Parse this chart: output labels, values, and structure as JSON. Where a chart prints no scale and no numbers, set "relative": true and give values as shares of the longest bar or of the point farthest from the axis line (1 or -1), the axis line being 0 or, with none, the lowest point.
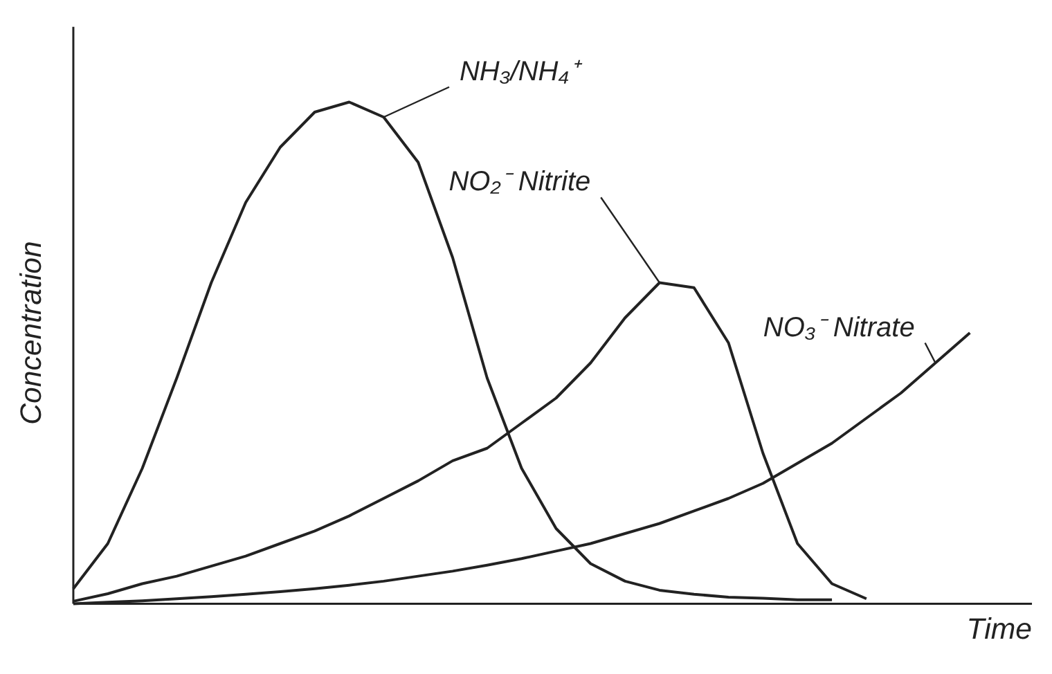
{
  "chart_data": {
    "type": "line",
    "relative": true,
    "xlabel": "Time",
    "ylabel": "Concentration",
    "legend": false,
    "grid": false,
    "marker": "none",
    "line_style": "solid",
    "categories": [
      null,
      null,
      null,
      null,
      null,
      null,
      null,
      null,
      null,
      null,
      null,
      null,
      null,
      null,
      null,
      null,
      null,
      null,
      null,
      null,
      null,
      null,
      null,
      null,
      null,
      null,
      null
    ],
    "series": [
      {
        "name": "NH₃/NH₄⁺",
        "color": "#222222",
        "values": [
          0.03,
          0.12,
          0.27,
          0.45,
          0.64,
          0.8,
          0.91,
          0.98,
          1.0,
          0.97,
          0.88,
          0.69,
          0.45,
          0.27,
          0.15,
          0.08,
          0.045,
          0.027,
          0.019,
          0.013,
          0.011,
          0.008,
          0.008,
          null,
          null,
          null,
          null
        ]
      },
      {
        "name": "NO₂⁻ Nitrite",
        "color": "#222222",
        "values": [
          0.005,
          0.02,
          0.04,
          0.055,
          0.075,
          0.095,
          0.12,
          0.145,
          0.175,
          0.21,
          0.245,
          0.285,
          0.31,
          0.36,
          0.41,
          0.48,
          0.57,
          0.64,
          0.63,
          0.52,
          0.3,
          0.12,
          0.04,
          0.01,
          null,
          null,
          null
        ]
      },
      {
        "name": "NO₃⁻ Nitrate",
        "color": "#222222",
        "values": [
          0,
          0.003,
          0.006,
          0.01,
          0.014,
          0.019,
          0.024,
          0.03,
          0.037,
          0.045,
          0.055,
          0.065,
          0.077,
          0.09,
          0.105,
          0.12,
          0.14,
          0.16,
          0.185,
          0.21,
          0.24,
          0.28,
          0.32,
          0.37,
          0.42,
          0.48,
          0.54
        ]
      }
    ]
  }
}
